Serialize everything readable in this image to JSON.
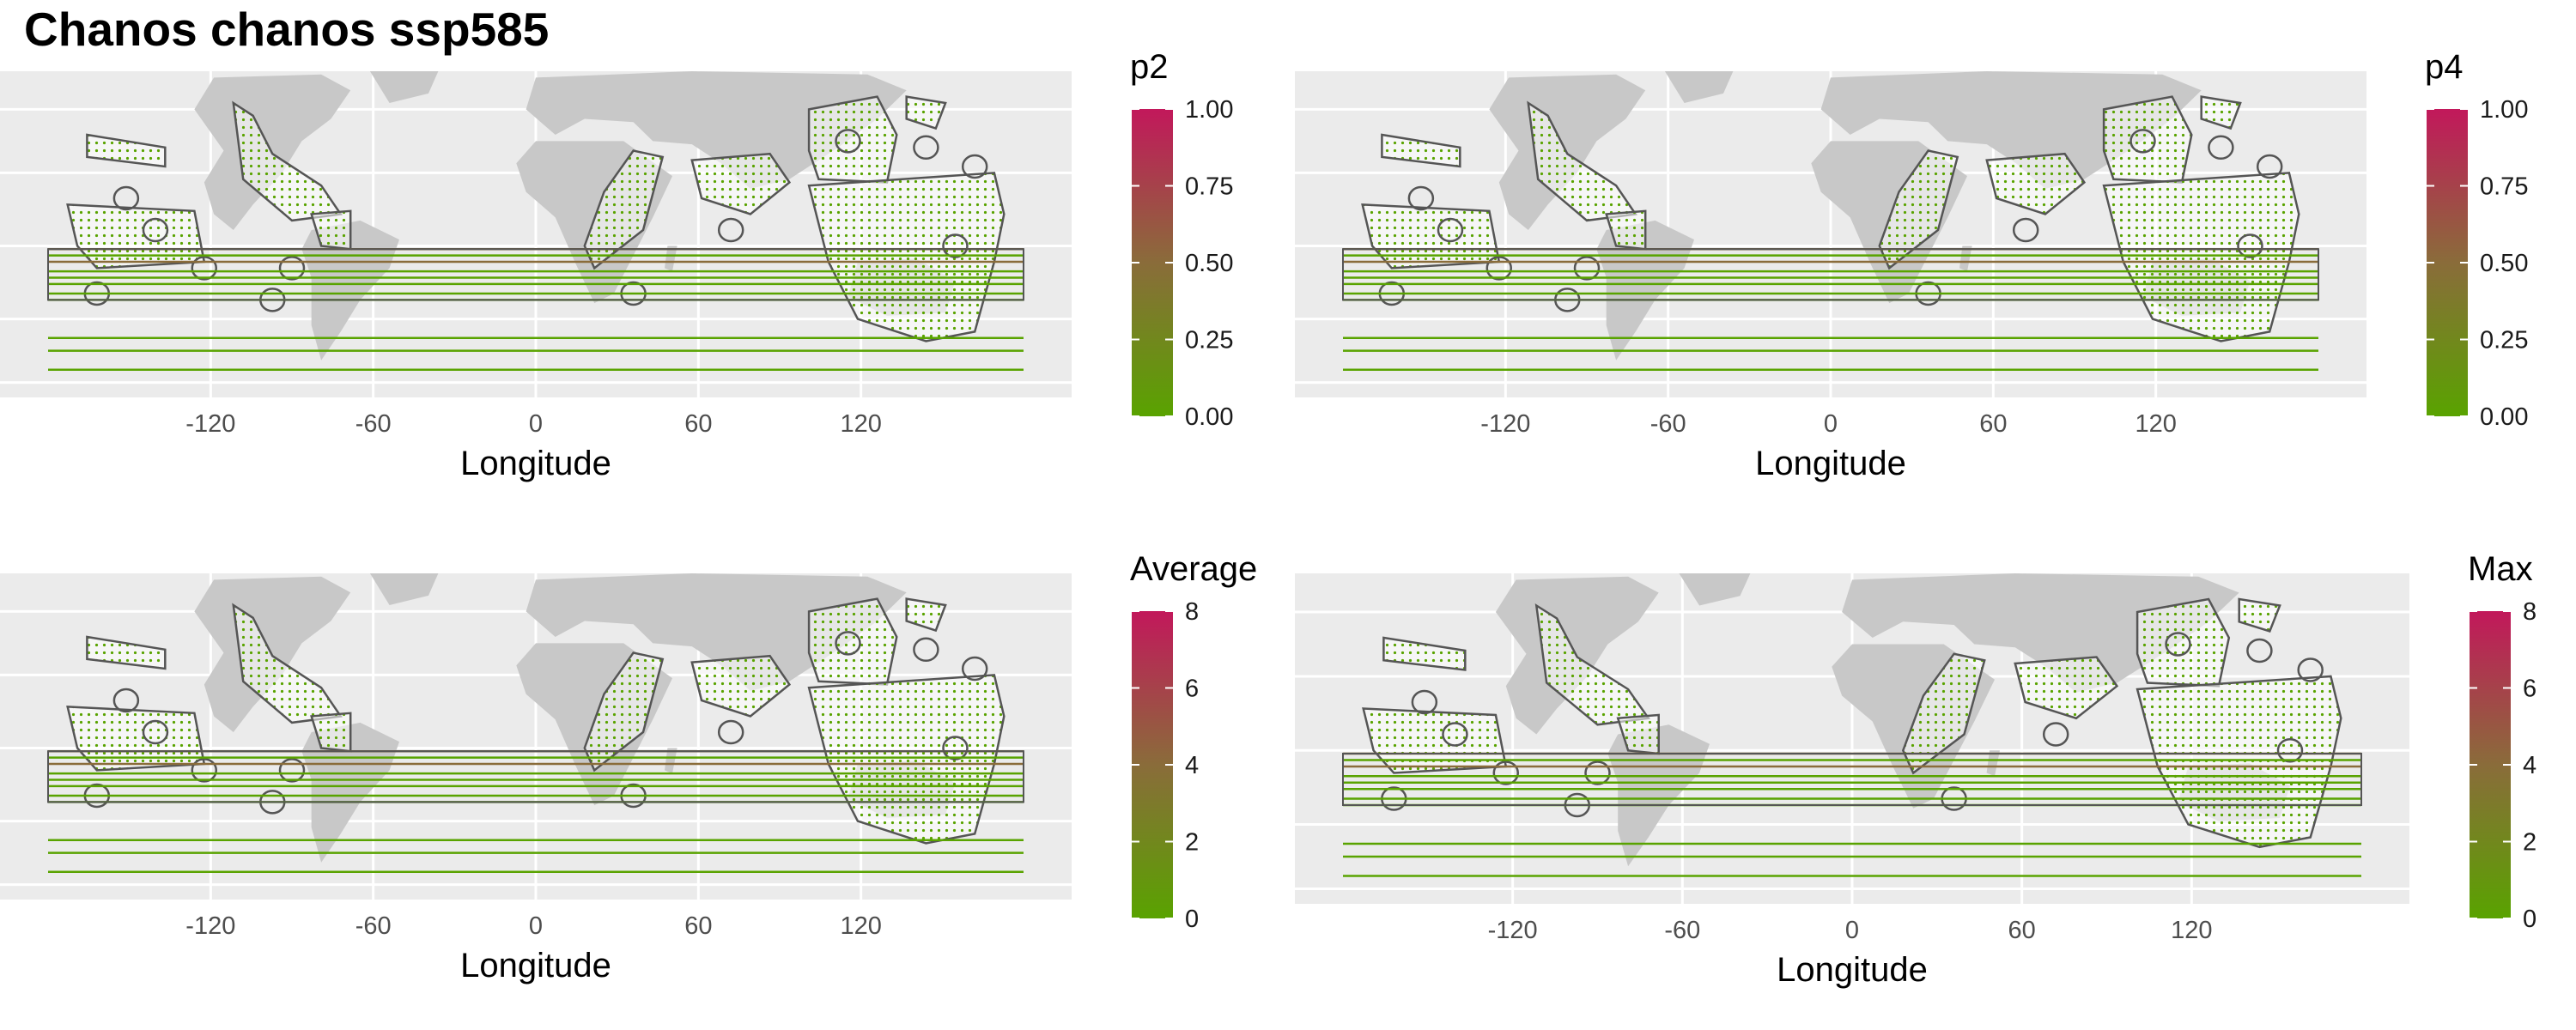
{
  "title": "Chanos chanos ssp585",
  "colors": {
    "panel_bg": "#ebebeb",
    "grid": "#ffffff",
    "land": "#c8c8c8",
    "outline": "#555555",
    "low": "#59a300",
    "mid": "#8a6c3a",
    "high": "#c2185b"
  },
  "chart_data": [
    {
      "type": "heatmap",
      "legend_title": "p2",
      "xlabel": "Longitude",
      "x_ticks": [
        "-120",
        "-60",
        "0",
        "60",
        "120"
      ],
      "legend_ticks": [
        "1.00",
        "0.75",
        "0.50",
        "0.25",
        "0.00"
      ],
      "legend_range": [
        0,
        1
      ]
    },
    {
      "type": "heatmap",
      "legend_title": "p4",
      "xlabel": "Longitude",
      "x_ticks": [
        "-120",
        "-60",
        "0",
        "60",
        "120"
      ],
      "legend_ticks": [
        "1.00",
        "0.75",
        "0.50",
        "0.25",
        "0.00"
      ],
      "legend_range": [
        0,
        1
      ]
    },
    {
      "type": "heatmap",
      "legend_title": "Average",
      "xlabel": "Longitude",
      "x_ticks": [
        "-120",
        "-60",
        "0",
        "60",
        "120"
      ],
      "legend_ticks": [
        "8",
        "6",
        "4",
        "2",
        "0"
      ],
      "legend_range": [
        0,
        8
      ]
    },
    {
      "type": "heatmap",
      "legend_title": "Max",
      "xlabel": "Longitude",
      "x_ticks": [
        "-120",
        "-60",
        "0",
        "60",
        "120"
      ],
      "legend_ticks": [
        "8",
        "6",
        "4",
        "2",
        "0"
      ],
      "legend_range": [
        0,
        8
      ]
    }
  ]
}
